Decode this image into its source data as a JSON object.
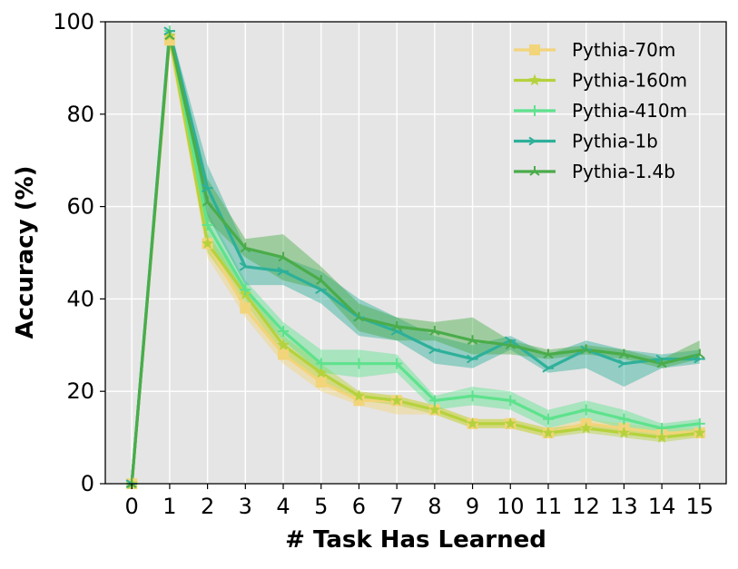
{
  "chart_data": {
    "type": "line",
    "xlabel": "# Task Has Learned",
    "ylabel": "Accuracy (%)",
    "xlim": [
      -0.7,
      15.7
    ],
    "ylim": [
      0,
      100
    ],
    "x": [
      0,
      1,
      2,
      3,
      4,
      5,
      6,
      7,
      8,
      9,
      10,
      11,
      12,
      13,
      14,
      15
    ],
    "x_ticks": [
      "0",
      "1",
      "2",
      "3",
      "4",
      "5",
      "6",
      "7",
      "8",
      "9",
      "10",
      "11",
      "12",
      "13",
      "14",
      "15"
    ],
    "y_ticks": [
      0,
      20,
      40,
      60,
      80,
      100
    ],
    "grid": true,
    "background": "#e5e5e5",
    "legend_position": "top-right",
    "series": [
      {
        "name": "Pythia-70m",
        "color": "#f2d47a",
        "marker": "square",
        "values": [
          0,
          96,
          52,
          38,
          28,
          22,
          18,
          18,
          16,
          13,
          13,
          11,
          13,
          12,
          11,
          11
        ],
        "lower": [
          0,
          95,
          49,
          36,
          26,
          20,
          17,
          15,
          15,
          12,
          12,
          10,
          12,
          11,
          10,
          10
        ],
        "upper": [
          0,
          97,
          55,
          40,
          30,
          24,
          20,
          19,
          17,
          14,
          14,
          12,
          14,
          13,
          12,
          12
        ]
      },
      {
        "name": "Pythia-160m",
        "color": "#b5d23d",
        "marker": "star",
        "values": [
          0,
          97,
          52,
          41,
          30,
          24,
          19,
          18,
          16,
          13,
          13,
          11,
          12,
          11,
          10,
          11
        ],
        "lower": [
          0,
          96,
          50,
          39,
          28,
          22,
          18,
          17,
          15,
          12,
          12,
          10,
          11,
          10,
          9,
          10
        ],
        "upper": [
          0,
          98,
          54,
          43,
          32,
          26,
          20,
          19,
          17,
          14,
          14,
          12,
          13,
          12,
          11,
          12
        ]
      },
      {
        "name": "Pythia-410m",
        "color": "#5ee28d",
        "marker": "plus",
        "values": [
          0,
          98,
          56,
          42,
          33,
          26,
          26,
          26,
          18,
          19,
          18,
          14,
          16,
          14,
          12,
          13
        ],
        "lower": [
          0,
          97,
          53,
          40,
          31,
          24,
          23,
          24,
          16,
          17,
          16,
          12,
          14,
          12,
          11,
          12
        ],
        "upper": [
          0,
          99,
          59,
          44,
          35,
          29,
          29,
          28,
          19,
          21,
          20,
          16,
          18,
          16,
          13,
          14
        ]
      },
      {
        "name": "Pythia-1b",
        "color": "#2eb09a",
        "marker": "tri_right",
        "values": [
          0,
          98,
          64,
          47,
          46,
          42,
          36,
          33,
          29,
          27,
          31,
          25,
          29,
          26,
          27,
          27
        ],
        "lower": [
          0,
          97,
          58,
          43,
          43,
          39,
          32,
          31,
          26,
          25,
          29,
          24,
          25,
          21,
          25,
          26
        ],
        "upper": [
          0,
          99,
          69,
          51,
          49,
          46,
          40,
          36,
          32,
          30,
          32,
          28,
          31,
          29,
          28,
          29
        ]
      },
      {
        "name": "Pythia-1.4b",
        "color": "#4aac4a",
        "marker": "tri_up",
        "values": [
          0,
          97,
          61,
          51,
          49,
          44,
          36,
          34,
          33,
          31,
          30,
          28,
          29,
          28,
          26,
          28
        ],
        "lower": [
          0,
          96,
          57,
          49,
          44,
          42,
          33,
          31,
          31,
          28,
          28,
          27,
          28,
          27,
          25,
          27
        ],
        "upper": [
          0,
          98,
          66,
          53,
          54,
          47,
          39,
          36,
          35,
          36,
          31,
          29,
          30,
          29,
          27,
          31
        ]
      }
    ]
  }
}
